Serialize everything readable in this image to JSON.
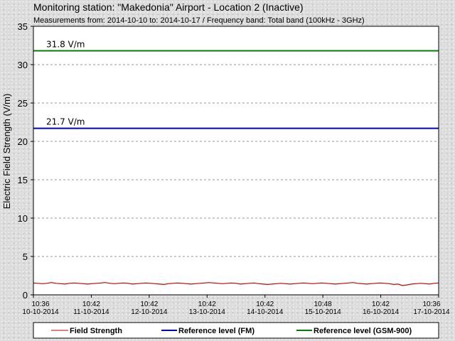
{
  "chart_data": {
    "type": "line",
    "title": "Monitoring station: \"Makedonia\" Airport - Location 2  (Inactive)",
    "subtitle": "Measurements from: 2014-10-10 to: 2014-10-17 / Frequency band: Total band (100kHz - 3GHz)",
    "ylabel": "Electric Field Strength (V/m)",
    "ylim": [
      0,
      35
    ],
    "yticks": [
      0,
      5,
      10,
      15,
      20,
      25,
      30,
      35
    ],
    "grid": true,
    "xticks": [
      {
        "time": "10:36",
        "date": "10-10-2014"
      },
      {
        "time": "10:42",
        "date": "11-10-2014"
      },
      {
        "time": "10:42",
        "date": "12-10-2014"
      },
      {
        "time": "10:42",
        "date": "13-10-2014"
      },
      {
        "time": "10:42",
        "date": "14-10-2014"
      },
      {
        "time": "10:48",
        "date": "15-10-2014"
      },
      {
        "time": "10:42",
        "date": "16-10-2014"
      },
      {
        "time": "10:36",
        "date": "17-10-2014"
      }
    ],
    "series": [
      {
        "name": "Field Strength",
        "color": "#cc0000",
        "values": [
          1.55,
          1.5,
          1.45,
          1.5,
          1.6,
          1.5,
          1.45,
          1.4,
          1.5,
          1.55,
          1.5,
          1.45,
          1.4,
          1.45,
          1.5,
          1.55,
          1.6,
          1.5,
          1.45,
          1.5,
          1.55,
          1.5,
          1.4,
          1.45,
          1.5,
          1.55,
          1.5,
          1.45,
          1.4,
          1.35,
          1.45,
          1.5,
          1.55,
          1.5,
          1.45,
          1.4,
          1.45,
          1.5,
          1.55,
          1.6,
          1.55,
          1.5,
          1.45,
          1.5,
          1.55,
          1.5,
          1.4,
          1.45,
          1.5,
          1.55,
          1.45,
          1.4,
          1.35,
          1.4,
          1.45,
          1.5,
          1.45,
          1.4,
          1.45,
          1.5,
          1.55,
          1.5,
          1.45,
          1.5,
          1.55,
          1.5,
          1.45,
          1.4,
          1.45,
          1.5,
          1.55,
          1.6,
          1.5,
          1.45,
          1.4,
          1.45,
          1.5,
          1.55,
          1.5,
          1.45,
          1.35,
          1.4,
          1.2,
          1.3,
          1.4,
          1.45,
          1.5,
          1.45,
          1.4,
          1.5,
          1.55
        ]
      },
      {
        "name": "Reference level (FM)",
        "color": "#0000cc",
        "value": 21.7,
        "label": "21.7 V/m"
      },
      {
        "name": "Reference level (GSM-900)",
        "color": "#008000",
        "value": 31.8,
        "label": "31.8 V/m"
      }
    ],
    "legend_position": "bottom"
  }
}
